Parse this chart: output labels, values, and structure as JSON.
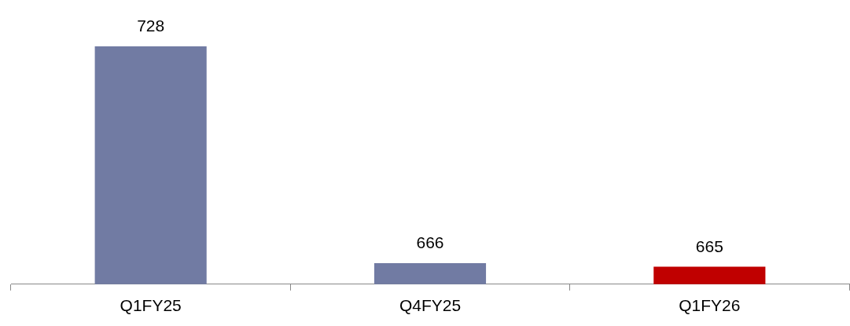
{
  "chart_data": {
    "type": "bar",
    "categories": [
      "Q1FY25",
      "Q4FY25",
      "Q1FY26"
    ],
    "values": [
      728,
      666,
      665
    ],
    "colors": [
      "#717ba3",
      "#717ba3",
      "#c00000"
    ],
    "data_labels": true,
    "tick_labels": "x",
    "grid": false,
    "legend": false
  }
}
